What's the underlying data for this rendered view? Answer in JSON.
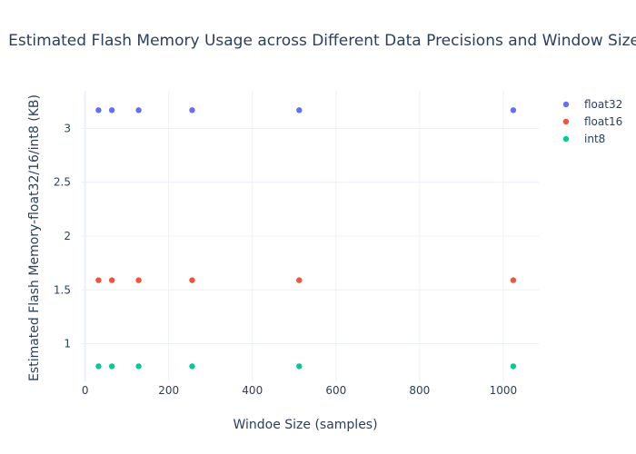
{
  "chart_data": {
    "type": "scatter",
    "title": "Estimated Flash Memory Usage across Different Data Precisions and Window Sizes",
    "xlabel": "Windoe Size (samples)",
    "ylabel": "Estimated Flash Memory-float32/16/int8  (KB)",
    "xlim": [
      -8,
      1085
    ],
    "ylim": [
      0.65,
      3.35
    ],
    "xticks": [
      0,
      200,
      400,
      600,
      800,
      1000
    ],
    "yticks": [
      1,
      1.5,
      2,
      2.5,
      3
    ],
    "grid": true,
    "legend_position": "top-right",
    "x": [
      32,
      64,
      128,
      256,
      512,
      1024
    ],
    "series": [
      {
        "name": "float32",
        "color": "#636efa",
        "values": [
          3.17,
          3.17,
          3.17,
          3.17,
          3.17,
          3.17
        ]
      },
      {
        "name": "float16",
        "color": "#EF553B",
        "values": [
          1.59,
          1.59,
          1.59,
          1.59,
          1.59,
          1.59
        ]
      },
      {
        "name": "int8",
        "color": "#00cc96",
        "values": [
          0.79,
          0.79,
          0.79,
          0.79,
          0.79,
          0.79
        ]
      }
    ]
  }
}
